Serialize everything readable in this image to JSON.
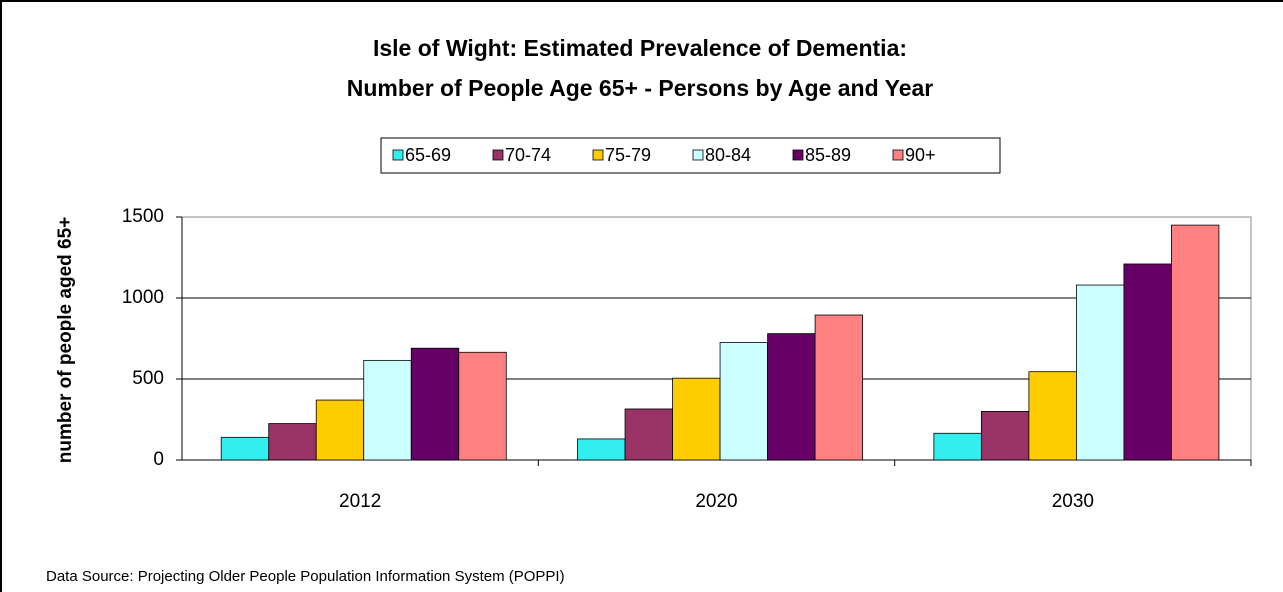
{
  "chart_data": {
    "type": "bar",
    "title": [
      "Isle of Wight: Estimated Prevalence of Dementia:",
      "Number of People Age 65+ - Persons by Age and Year"
    ],
    "y_label": "number of people aged 65+",
    "source": "Data Source: Projecting Older People Population Information System (POPPI)",
    "categories": [
      "2012",
      "2020",
      "2030"
    ],
    "series": [
      {
        "name": "65-69",
        "color": "#33eeee",
        "values": [
          140,
          130,
          165
        ]
      },
      {
        "name": "70-74",
        "color": "#993366",
        "values": [
          225,
          315,
          300
        ]
      },
      {
        "name": "75-79",
        "color": "#ffcc00",
        "values": [
          370,
          505,
          545
        ]
      },
      {
        "name": "80-84",
        "color": "#ccffff",
        "values": [
          615,
          725,
          1080
        ]
      },
      {
        "name": "85-89",
        "color": "#660066",
        "values": [
          690,
          780,
          1210
        ]
      },
      {
        "name": "90+",
        "color": "#ff8080",
        "values": [
          665,
          895,
          1450
        ]
      }
    ],
    "ylim": [
      0,
      1500
    ],
    "yticks": [
      0,
      500,
      1000,
      1500
    ],
    "grid": true,
    "legend": "top"
  }
}
